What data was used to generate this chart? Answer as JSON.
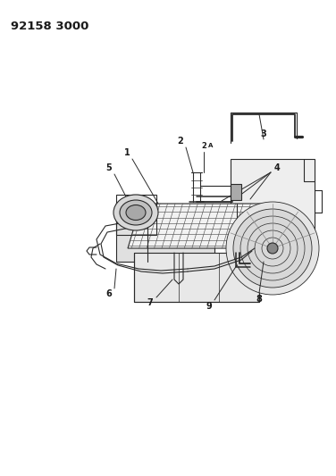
{
  "title_text": "92158 3000",
  "bg_color": "#ffffff",
  "line_color": "#2a2a2a",
  "label_color": "#1a1a1a",
  "label_fontsize": 7.0,
  "title_fontsize": 9.5,
  "title_fontweight": "bold",
  "lw_main": 0.8,
  "lw_thin": 0.5
}
